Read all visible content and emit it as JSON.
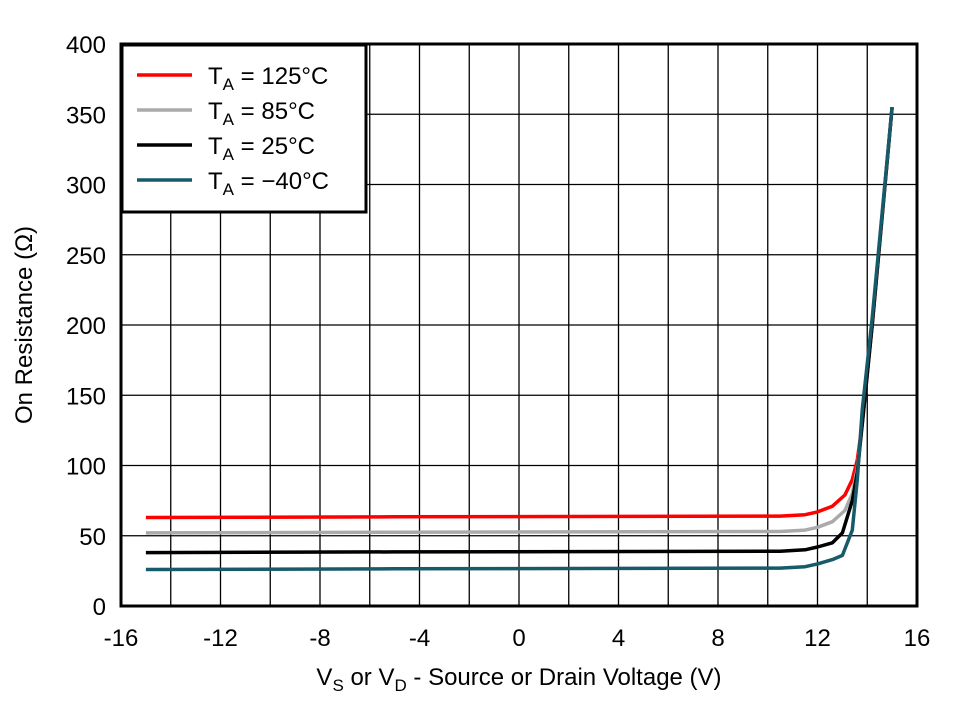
{
  "chart_data": {
    "type": "line",
    "xlabel": {
      "v": "V",
      "vs_sub": "S",
      "or": " or V",
      "vd_sub": "D",
      "rest": " - Source or Drain Voltage (V)"
    },
    "ylabel": "On Resistance (Ω)",
    "xlim": [
      -16,
      16
    ],
    "ylim": [
      0,
      400
    ],
    "xticks": [
      -16,
      -12,
      -8,
      -4,
      0,
      4,
      8,
      12,
      16
    ],
    "yticks": [
      0,
      50,
      100,
      150,
      200,
      250,
      300,
      350,
      400
    ],
    "grid": true,
    "legend_position": "top-left",
    "series": [
      {
        "name": "T",
        "sub": "A",
        "suffix": " = 125°C",
        "color": "#ff0000",
        "x": [
          -15,
          -5,
          10.5,
          11.5,
          12,
          12.6,
          13.1,
          13.4,
          13.6,
          13.8,
          14.2,
          15
        ],
        "y": [
          63,
          63.5,
          64,
          65,
          67,
          71,
          79,
          90,
          104,
          130,
          200,
          355
        ]
      },
      {
        "name": "T",
        "sub": "A",
        "suffix": " = 85°C",
        "color": "#aaaaaa",
        "x": [
          -15,
          -5,
          10.5,
          11.5,
          12,
          12.6,
          13.1,
          13.4,
          13.6,
          13.8,
          14.2,
          15
        ],
        "y": [
          52,
          52.5,
          53,
          54,
          56,
          60,
          68,
          80,
          98,
          130,
          200,
          355
        ]
      },
      {
        "name": "T",
        "sub": "A",
        "suffix": " = 25°C",
        "color": "#000000",
        "x": [
          -15,
          -5,
          10.5,
          11.5,
          12,
          12.6,
          13.0,
          13.4,
          13.6,
          13.8,
          14.2,
          15
        ],
        "y": [
          38,
          38.5,
          39,
          40,
          42,
          45,
          52,
          75,
          95,
          130,
          200,
          355
        ]
      },
      {
        "name": "T",
        "sub": "A",
        "suffix": " = −40°C",
        "color": "#175a6a",
        "x": [
          -15,
          -5,
          10.5,
          11.5,
          12,
          12.6,
          13.0,
          13.4,
          13.6,
          13.8,
          14.2,
          15
        ],
        "y": [
          26,
          26.5,
          27,
          28,
          30,
          33,
          36,
          54,
          90,
          140,
          205,
          355
        ]
      }
    ]
  }
}
